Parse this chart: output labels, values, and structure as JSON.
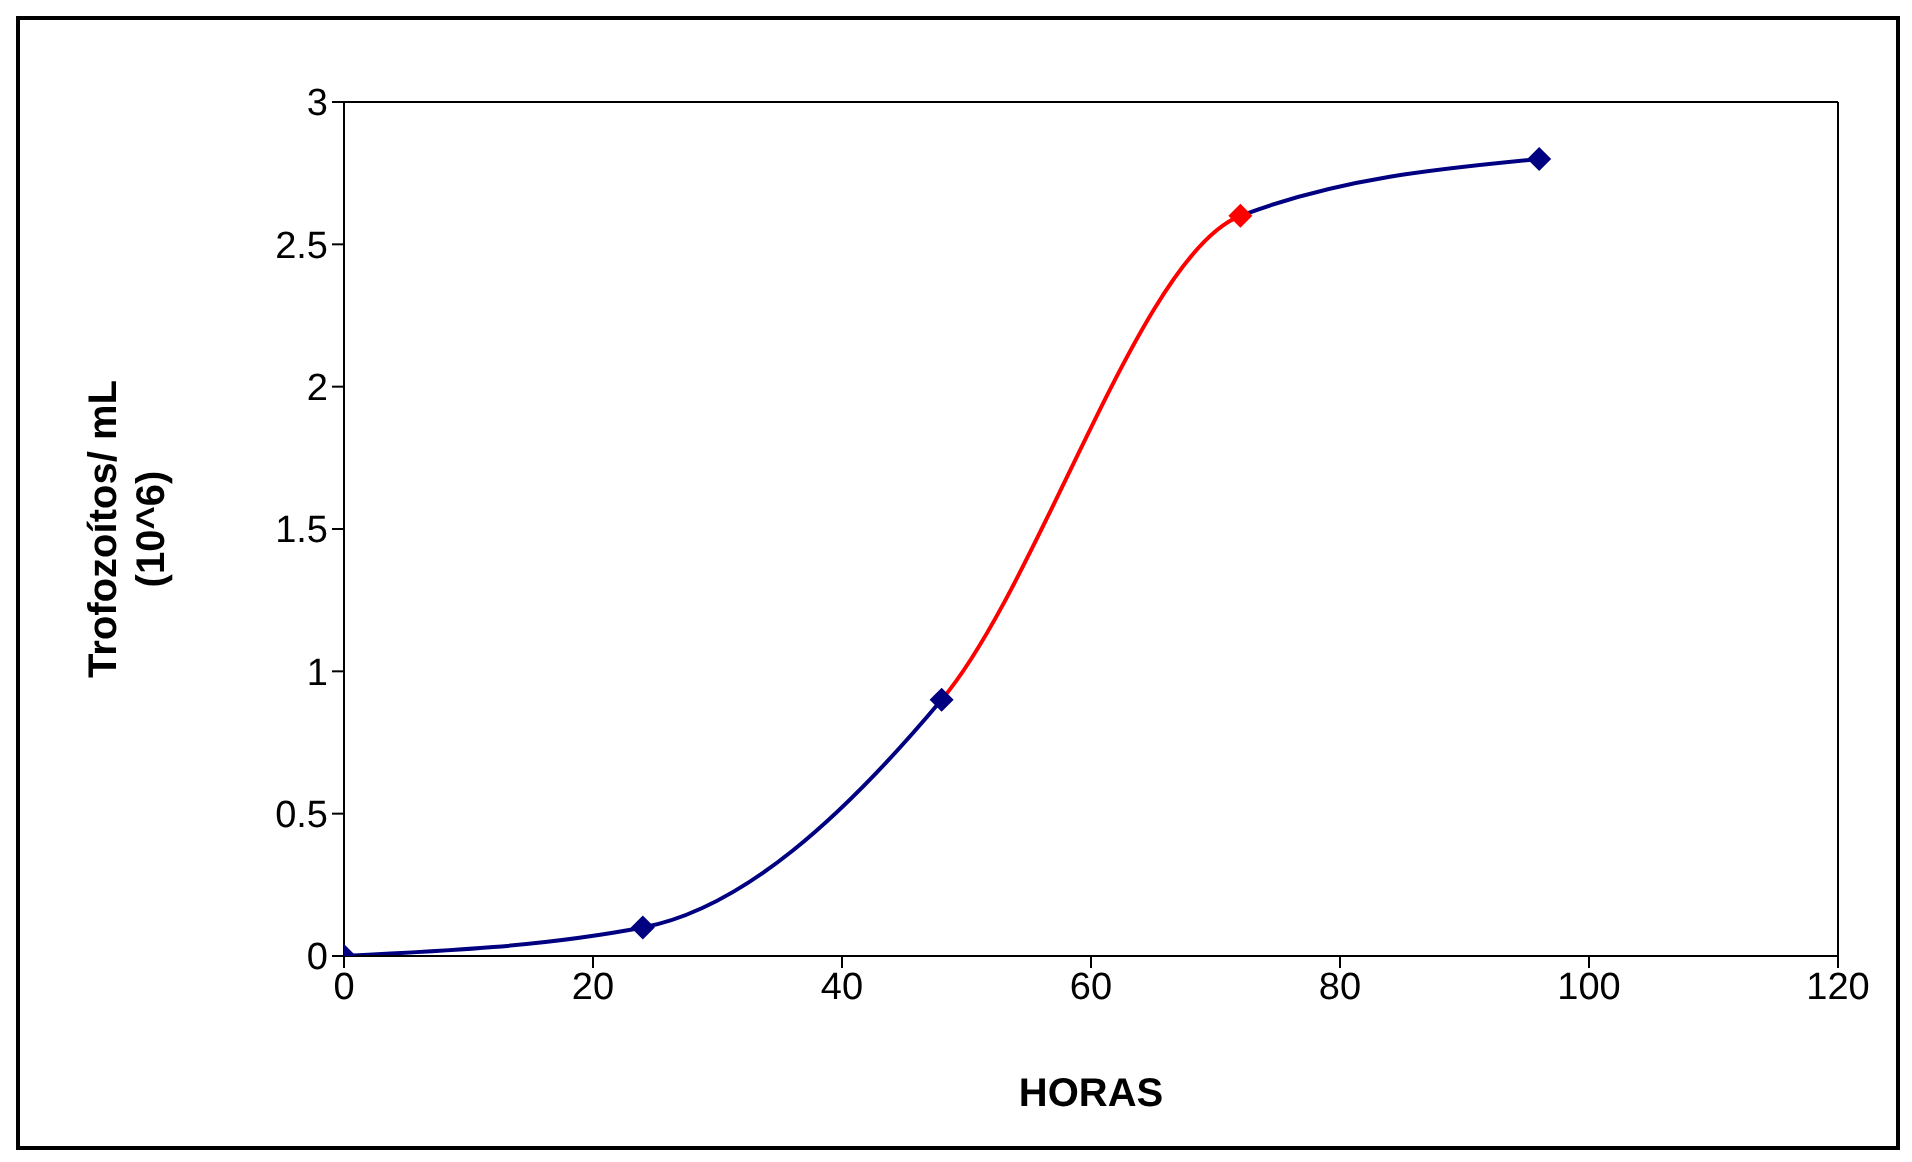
{
  "chart_data": {
    "type": "line",
    "xlabel": "HORAS",
    "ylabel": "Trofozoítos/ mL\n(10^6)",
    "x": [
      0,
      24,
      48,
      72,
      96
    ],
    "series": [
      {
        "color": "#000080",
        "colors": [
          null,
          null,
          null,
          "#ff0000",
          null
        ],
        "values": [
          0,
          0.1,
          0.9,
          2.6,
          2.8
        ]
      }
    ],
    "xlim": [
      0,
      120
    ],
    "xticks": [
      0,
      20,
      40,
      60,
      80,
      100,
      120
    ],
    "ylim": [
      0,
      3
    ],
    "yticks": [
      0,
      0.5,
      1,
      1.5,
      2,
      2.5,
      3
    ],
    "grid": false,
    "legend": false,
    "marker": "diamond",
    "line_style": "solid"
  }
}
